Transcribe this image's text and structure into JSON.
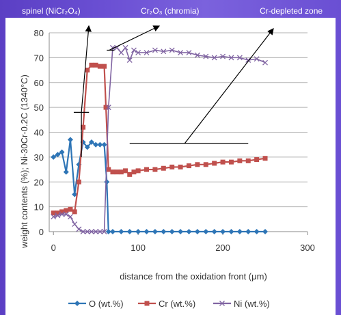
{
  "annotations": {
    "spinel": "spinel (NiCr₂O₄)",
    "chromia": "Cr₂O₃ (chromia)",
    "depleted": "Cr-depleted zone"
  },
  "chart_data": {
    "type": "line",
    "xlabel": "distance from the oxidation front (μm)",
    "ylabel": "weight contents (%); Ni-30Cr-0.2C (1340°C)",
    "xlim": [
      -5,
      300
    ],
    "ylim": [
      0,
      80
    ],
    "xticks": [
      0,
      100,
      200,
      300
    ],
    "yticks": [
      0,
      10,
      20,
      30,
      40,
      50,
      60,
      70,
      80
    ],
    "grid": "horizontal",
    "legend_position": "bottom",
    "series": [
      {
        "name": "O (wt.%)",
        "color": "#2e75b6",
        "marker": "diamond",
        "x": [
          0,
          5,
          10,
          15,
          20,
          25,
          30,
          35,
          40,
          45,
          50,
          55,
          60,
          63,
          65,
          70,
          80,
          90,
          100,
          110,
          120,
          130,
          140,
          150,
          160,
          170,
          180,
          190,
          200,
          210,
          220,
          230,
          240,
          250
        ],
        "y": [
          30,
          31,
          32,
          24,
          37,
          15,
          27,
          36,
          34,
          36,
          35,
          35,
          35,
          20,
          0,
          0,
          0,
          0,
          0,
          0,
          0,
          0,
          0,
          0,
          0,
          0,
          0,
          0,
          0,
          0,
          0,
          0,
          0,
          0
        ]
      },
      {
        "name": "Cr (wt.%)",
        "color": "#c0504d",
        "marker": "square",
        "x": [
          0,
          5,
          10,
          15,
          20,
          25,
          30,
          35,
          40,
          45,
          50,
          55,
          60,
          62,
          65,
          70,
          75,
          80,
          85,
          90,
          95,
          100,
          110,
          120,
          130,
          140,
          150,
          160,
          170,
          180,
          190,
          200,
          210,
          220,
          230,
          240,
          250
        ],
        "y": [
          7.5,
          7.5,
          8,
          8.5,
          9,
          8,
          20,
          42,
          65,
          67,
          67,
          66.5,
          66.5,
          50,
          25,
          24,
          24,
          24,
          24.5,
          23,
          24,
          24.5,
          25,
          25,
          25.5,
          26,
          26,
          26.5,
          27,
          27,
          27.5,
          28,
          28,
          28.5,
          28.5,
          29,
          29.5
        ]
      },
      {
        "name": "Ni (wt.%)",
        "color": "#8064a2",
        "marker": "x",
        "x": [
          0,
          5,
          10,
          15,
          20,
          25,
          30,
          35,
          40,
          45,
          50,
          55,
          60,
          65,
          70,
          75,
          80,
          85,
          90,
          95,
          100,
          110,
          120,
          130,
          140,
          150,
          160,
          170,
          180,
          190,
          200,
          210,
          220,
          230,
          240,
          250
        ],
        "y": [
          6,
          6.5,
          7,
          7,
          6,
          3,
          1,
          0,
          0,
          0,
          0,
          0,
          0,
          50,
          74,
          74,
          72,
          74,
          69,
          73,
          72,
          72,
          73,
          72.5,
          73,
          72,
          72,
          71,
          70.5,
          70,
          70.5,
          70,
          70,
          69,
          69.5,
          68
        ]
      }
    ]
  }
}
